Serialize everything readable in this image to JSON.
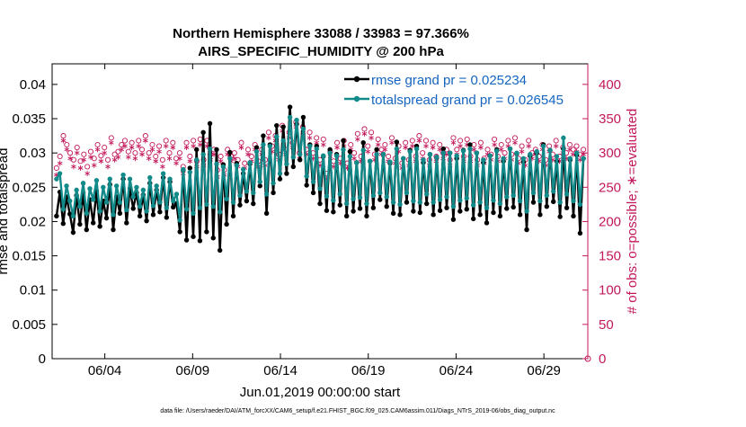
{
  "chart_data": {
    "type": "line",
    "title": "Northern Hemisphere 33088 / 33983 = 97.366%",
    "subtitle": "AIRS_SPECIFIC_HUMIDITY @ 200 hPa",
    "ylabel": "rmse and totalspread",
    "ylabel_right": "# of obs: o=possible; ∗=evaluated",
    "xlabel": "Jun.01,2019 00:00:00 start",
    "footer": "data file: /Users/raeder/DAI/ATM_forcXX/CAM6_setup/f.e21.FHIST_BGC.f09_025.CAM6assim.011/Diags_NTrS_2019-06/obs_diag_output.nc",
    "ylim": [
      0,
      0.043
    ],
    "ylim_right": [
      0,
      430
    ],
    "xlim": [
      0,
      30.5
    ],
    "yticks": [
      "0",
      "0.005",
      "0.01",
      "0.015",
      "0.02",
      "0.025",
      "0.03",
      "0.035",
      "0.04"
    ],
    "ytick_values": [
      0,
      0.005,
      0.01,
      0.015,
      0.02,
      0.025,
      0.03,
      0.035,
      0.04
    ],
    "yticks_right": [
      "0",
      "50",
      "100",
      "150",
      "200",
      "250",
      "300",
      "350",
      "400"
    ],
    "ytick_right_values": [
      0,
      50,
      100,
      150,
      200,
      250,
      300,
      350,
      400
    ],
    "xticks": [
      "06/04",
      "06/09",
      "06/14",
      "06/19",
      "06/24",
      "06/29"
    ],
    "xtick_values": [
      3,
      8,
      13,
      18,
      23,
      28
    ],
    "legend": [
      "rmse grand pr = 0.025234",
      "totalspread grand pr = 0.026545"
    ],
    "series": [
      {
        "name": "rmse",
        "color": "#000000",
        "values": [
          0.0208,
          0.0243,
          0.0197,
          0.0236,
          0.0211,
          0.0184,
          0.0238,
          0.0196,
          0.0242,
          0.0188,
          0.0232,
          0.0198,
          0.0244,
          0.0193,
          0.023,
          0.0205,
          0.0254,
          0.0188,
          0.0236,
          0.0212,
          0.0262,
          0.0198,
          0.0248,
          0.0219,
          0.0242,
          0.0208,
          0.0239,
          0.0201,
          0.0256,
          0.021,
          0.0246,
          0.0214,
          0.0264,
          0.0206,
          0.0258,
          0.0221,
          0.0226,
          0.0185,
          0.0275,
          0.0173,
          0.0278,
          0.0178,
          0.0305,
          0.0172,
          0.033,
          0.0185,
          0.0343,
          0.0176,
          0.0305,
          0.0158,
          0.0283,
          0.0196,
          0.0301,
          0.0208,
          0.0285,
          0.0224,
          0.027,
          0.023,
          0.0284,
          0.0226,
          0.0308,
          0.0252,
          0.0325,
          0.0212,
          0.0312,
          0.0242,
          0.034,
          0.0262,
          0.0338,
          0.027,
          0.0367,
          0.028,
          0.0342,
          0.029,
          0.0352,
          0.0253,
          0.0312,
          0.0242,
          0.031,
          0.0226,
          0.0295,
          0.0216,
          0.0305,
          0.0214,
          0.0298,
          0.0224,
          0.0318,
          0.0208,
          0.0302,
          0.0215,
          0.0286,
          0.0219,
          0.0315,
          0.0208,
          0.0288,
          0.022,
          0.0305,
          0.0232,
          0.0298,
          0.0222,
          0.0285,
          0.0212,
          0.0316,
          0.021,
          0.0292,
          0.0228,
          0.0304,
          0.0215,
          0.031,
          0.0213,
          0.0286,
          0.0226,
          0.0298,
          0.021,
          0.0293,
          0.0216,
          0.0306,
          0.022,
          0.03,
          0.0203,
          0.0292,
          0.0215,
          0.0304,
          0.0218,
          0.0312,
          0.0204,
          0.03,
          0.021,
          0.0286,
          0.0198,
          0.0296,
          0.0213,
          0.0305,
          0.0208,
          0.0288,
          0.0219,
          0.0306,
          0.0221,
          0.0299,
          0.021,
          0.0287,
          0.0188,
          0.0296,
          0.0228,
          0.03,
          0.021,
          0.0312,
          0.0222,
          0.0304,
          0.0229,
          0.0288,
          0.0207,
          0.0306,
          0.022,
          0.029,
          0.0208,
          0.0297,
          0.0183,
          0.0292
        ]
      },
      {
        "name": "totalspread",
        "color": "#138a8a",
        "values": [
          0.0262,
          0.027,
          0.0218,
          0.0252,
          0.023,
          0.0208,
          0.0246,
          0.0222,
          0.0256,
          0.0212,
          0.0248,
          0.0232,
          0.026,
          0.0215,
          0.025,
          0.0228,
          0.0262,
          0.021,
          0.0252,
          0.0228,
          0.0268,
          0.0217,
          0.0262,
          0.0236,
          0.025,
          0.0222,
          0.0246,
          0.0215,
          0.0264,
          0.0223,
          0.0252,
          0.0228,
          0.027,
          0.022,
          0.0262,
          0.023,
          0.024,
          0.0202,
          0.0276,
          0.0218,
          0.0272,
          0.0212,
          0.029,
          0.022,
          0.0298,
          0.0225,
          0.0306,
          0.0222,
          0.0284,
          0.0214,
          0.028,
          0.0233,
          0.0292,
          0.0228,
          0.0282,
          0.0238,
          0.0276,
          0.0244,
          0.0286,
          0.0242,
          0.0302,
          0.0258,
          0.0312,
          0.024,
          0.031,
          0.0256,
          0.0324,
          0.027,
          0.0318,
          0.0284,
          0.0352,
          0.0294,
          0.0348,
          0.0298,
          0.0335,
          0.0266,
          0.031,
          0.0258,
          0.0306,
          0.0248,
          0.0296,
          0.0237,
          0.03,
          0.0231,
          0.0296,
          0.024,
          0.0305,
          0.0226,
          0.0295,
          0.0233,
          0.0286,
          0.0235,
          0.0304,
          0.0226,
          0.0288,
          0.0238,
          0.0298,
          0.0242,
          0.0298,
          0.0236,
          0.0287,
          0.0228,
          0.0306,
          0.0225,
          0.0292,
          0.0242,
          0.0302,
          0.023,
          0.0306,
          0.0228,
          0.029,
          0.024,
          0.0298,
          0.0228,
          0.0294,
          0.0232,
          0.03,
          0.0236,
          0.03,
          0.0222,
          0.0296,
          0.0231,
          0.0303,
          0.0234,
          0.0306,
          0.0224,
          0.03,
          0.0228,
          0.029,
          0.022,
          0.0296,
          0.0231,
          0.0303,
          0.0226,
          0.0292,
          0.0236,
          0.0306,
          0.0238,
          0.03,
          0.023,
          0.0292,
          0.0215,
          0.0298,
          0.0242,
          0.0302,
          0.023,
          0.031,
          0.0238,
          0.0304,
          0.0244,
          0.0295,
          0.0228,
          0.0322,
          0.024,
          0.0292,
          0.023,
          0.03,
          0.0225,
          0.0292
        ]
      },
      {
        "name": "obs possible",
        "color": "#c2185b",
        "marker": "o",
        "values": [
          278,
          295,
          325,
          312,
          300,
          290,
          308,
          288,
          298,
          280,
          302,
          292,
          312,
          296,
          308,
          290,
          322,
          298,
          302,
          312,
          318,
          302,
          315,
          300,
          318,
          305,
          325,
          300,
          312,
          295,
          310,
          290,
          318,
          300,
          315,
          292,
          300,
          280,
          315,
          295,
          318,
          288,
          320,
          290,
          318,
          298,
          305,
          275,
          295,
          275,
          305,
          295,
          300,
          290,
          315,
          285,
          305,
          295,
          312,
          288,
          305,
          290,
          330,
          310,
          325,
          298,
          340,
          305,
          330,
          315,
          345,
          300,
          338,
          305,
          330,
          300,
          322,
          290,
          320,
          270,
          302,
          288,
          315,
          292,
          318,
          285,
          312,
          300,
          328,
          295,
          335,
          310,
          330,
          298,
          320,
          305,
          312,
          295,
          322,
          292,
          310,
          285,
          315,
          290,
          318,
          295,
          325,
          300,
          318,
          290,
          315,
          295,
          312,
          300,
          305,
          290,
          322,
          305,
          318,
          295,
          320,
          295,
          312,
          290,
          315,
          292,
          305,
          298,
          320,
          295,
          312,
          300,
          318,
          298,
          322,
          292,
          310,
          290,
          318,
          300,
          305,
          295,
          312,
          290,
          310,
          298,
          318,
          295,
          308,
          300,
          312,
          305,
          310,
          298,
          305
        ]
      },
      {
        "name": "obs evaluated",
        "color": "#c2185b",
        "marker": "*",
        "values": [
          268,
          285,
          318,
          305,
          292,
          280,
          300,
          278,
          290,
          270,
          294,
          282,
          305,
          288,
          300,
          280,
          315,
          290,
          294,
          305,
          310,
          294,
          308,
          292,
          310,
          298,
          318,
          292,
          305,
          288,
          302,
          280,
          310,
          292,
          308,
          285,
          292,
          270,
          308,
          288,
          310,
          280,
          312,
          282,
          310,
          290,
          298,
          265,
          288,
          268,
          298,
          288,
          292,
          280,
          308,
          278,
          298,
          288,
          305,
          280,
          298,
          282,
          322,
          302,
          318,
          290,
          332,
          298,
          322,
          308,
          338,
          292,
          330,
          298,
          322,
          292,
          315,
          282,
          312,
          262,
          295,
          280,
          308,
          285,
          310,
          278,
          305,
          292,
          320,
          288,
          328,
          302,
          322,
          290,
          312,
          298,
          305,
          288,
          315,
          285,
          302,
          278,
          308,
          282,
          310,
          288,
          318,
          292,
          310,
          282,
          308,
          288,
          305,
          292,
          298,
          282,
          315,
          298,
          310,
          288,
          312,
          288,
          305,
          282,
          308,
          285,
          298,
          290,
          312,
          288,
          305,
          292,
          310,
          290,
          315,
          285,
          302,
          282,
          310,
          292,
          298,
          288,
          305,
          282,
          302,
          290,
          310,
          288,
          300,
          292,
          305,
          298,
          302,
          290,
          298
        ]
      }
    ]
  }
}
